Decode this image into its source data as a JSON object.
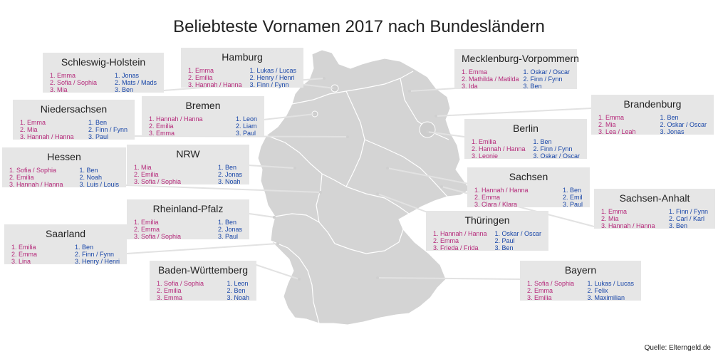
{
  "title": "Beliebteste Vornamen 2017 nach Bundesländern",
  "source": "Quelle: Elterngeld.de",
  "colors": {
    "girls": "#b5287a",
    "boys": "#1846a8",
    "box": "#e6e6e6",
    "map": "#d4d4d4"
  },
  "states": [
    {
      "id": "schleswig-holstein",
      "name": "Schleswig-Holstein",
      "girls": [
        "1. Emma",
        "2. Sofia / Sophia",
        "3. Mia"
      ],
      "boys": [
        "1. Jonas",
        "2. Mats / Mads",
        "3. Ben"
      ]
    },
    {
      "id": "hamburg",
      "name": "Hamburg",
      "girls": [
        "1. Emma",
        "2. Emilia",
        "3. Hannah / Hanna"
      ],
      "boys": [
        "1. Lukas / Lucas",
        "2. Henry / Henri",
        "3. Finn / Fynn"
      ]
    },
    {
      "id": "mecklenburg-vorpommern",
      "name": "Mecklenburg-Vorpommern",
      "girls": [
        "1. Emma",
        "2. Mathilda / Matilda",
        "3. Ida"
      ],
      "boys": [
        "1. Oskar / Oscar",
        "2. Finn / Fynn",
        "3. Ben"
      ]
    },
    {
      "id": "niedersachsen",
      "name": "Niedersachsen",
      "girls": [
        "1. Emma",
        "2. Mia",
        "3. Hannah / Hanna"
      ],
      "boys": [
        "1. Ben",
        "2. Finn / Fynn",
        "3. Paul"
      ]
    },
    {
      "id": "bremen",
      "name": "Bremen",
      "girls": [
        "1. Hannah / Hanna",
        "2. Emilia",
        "3. Emma"
      ],
      "boys": [
        "1. Leon",
        "2. Liam",
        "3. Paul"
      ]
    },
    {
      "id": "brandenburg",
      "name": "Brandenburg",
      "girls": [
        "1. Emma",
        "2. Mia",
        "3. Lea / Leah"
      ],
      "boys": [
        "1. Ben",
        "2. Oskar / Oscar",
        "3. Jonas"
      ]
    },
    {
      "id": "berlin",
      "name": "Berlin",
      "girls": [
        "1. Emilia",
        "2. Hannah / Hanna",
        "3. Leonie"
      ],
      "boys": [
        "1. Ben",
        "2. Finn / Fynn",
        "3. Oskar / Oscar"
      ]
    },
    {
      "id": "hessen",
      "name": "Hessen",
      "girls": [
        "1. Sofia / Sophia",
        "2. Emilia",
        "3. Hannah / Hanna"
      ],
      "boys": [
        "1. Ben",
        "2. Noah",
        "3. Luis / Louis"
      ]
    },
    {
      "id": "nrw",
      "name": "NRW",
      "girls": [
        "1. Mia",
        "2. Emilia",
        "3. Sofia / Sophia"
      ],
      "boys": [
        "1. Ben",
        "2. Jonas",
        "3. Noah"
      ]
    },
    {
      "id": "sachsen",
      "name": "Sachsen",
      "girls": [
        "1. Hannah / Hanna",
        "2. Emma",
        "3. Clara / Klara"
      ],
      "boys": [
        "1. Ben",
        "2. Emil",
        "3. Paul"
      ]
    },
    {
      "id": "sachsen-anhalt",
      "name": "Sachsen-Anhalt",
      "girls": [
        "1. Emma",
        "2. Mia",
        "3. Hannah / Hanna"
      ],
      "boys": [
        "1. Finn / Fynn",
        "2. Carl / Karl",
        "3. Ben"
      ]
    },
    {
      "id": "rheinland-pfalz",
      "name": "Rheinland-Pfalz",
      "girls": [
        "1. Emilia",
        "2. Emma",
        "3. Sofia / Sophia"
      ],
      "boys": [
        "1. Ben",
        "2. Jonas",
        "3. Paul"
      ]
    },
    {
      "id": "saarland",
      "name": "Saarland",
      "girls": [
        "1. Emilia",
        "2. Emma",
        "3. Lina"
      ],
      "boys": [
        "1. Ben",
        "2. Finn / Fynn",
        "3. Henry / Henri"
      ]
    },
    {
      "id": "thueringen",
      "name": "Thüringen",
      "girls": [
        "1. Hannah / Hanna",
        "2. Emma",
        "3. Frieda / Frida"
      ],
      "boys": [
        "1. Oskar / Oscar",
        "2. Paul",
        "3. Ben"
      ]
    },
    {
      "id": "baden-wuerttemberg",
      "name": "Baden-Württemberg",
      "girls": [
        "1. Sofia / Sophia",
        "2. Emilia",
        "3. Emma"
      ],
      "boys": [
        "1. Leon",
        "2. Ben",
        "3. Noah"
      ]
    },
    {
      "id": "bayern",
      "name": "Bayern",
      "girls": [
        "1. Sofia / Sophia",
        "2. Emma",
        "3. Emilia"
      ],
      "boys": [
        "1. Lukas / Lucas",
        "2. Felix",
        "3. Maximilian"
      ]
    }
  ]
}
